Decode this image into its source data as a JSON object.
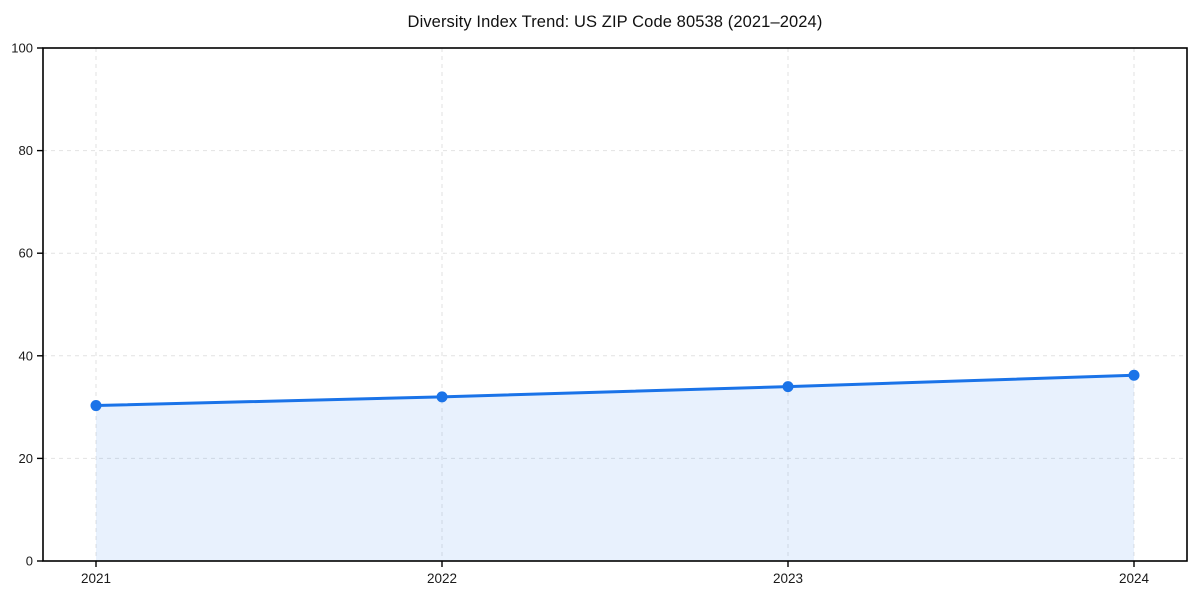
{
  "chart_data": {
    "type": "area",
    "title": "Diversity Index Trend: US ZIP Code 80538 (2021–2024)",
    "xlabel": "",
    "ylabel": "",
    "categories": [
      "2021",
      "2022",
      "2023",
      "2024"
    ],
    "series": [
      {
        "name": "Diversity Index",
        "values": [
          30.3,
          32.0,
          34.0,
          36.2
        ]
      }
    ],
    "ylim": [
      0,
      100
    ],
    "yticks": [
      0,
      20,
      40,
      60,
      80,
      100
    ],
    "grid": true,
    "legend": "none",
    "colors": {
      "line": "#1a73e8",
      "marker": "#1a73e8",
      "area_fill": "rgba(26,115,232,0.10)",
      "gridline": "#e2e2e2",
      "frame": "#000000",
      "tick_label": "#1a1a1a",
      "title": "#111111",
      "background": "#ffffff"
    }
  }
}
